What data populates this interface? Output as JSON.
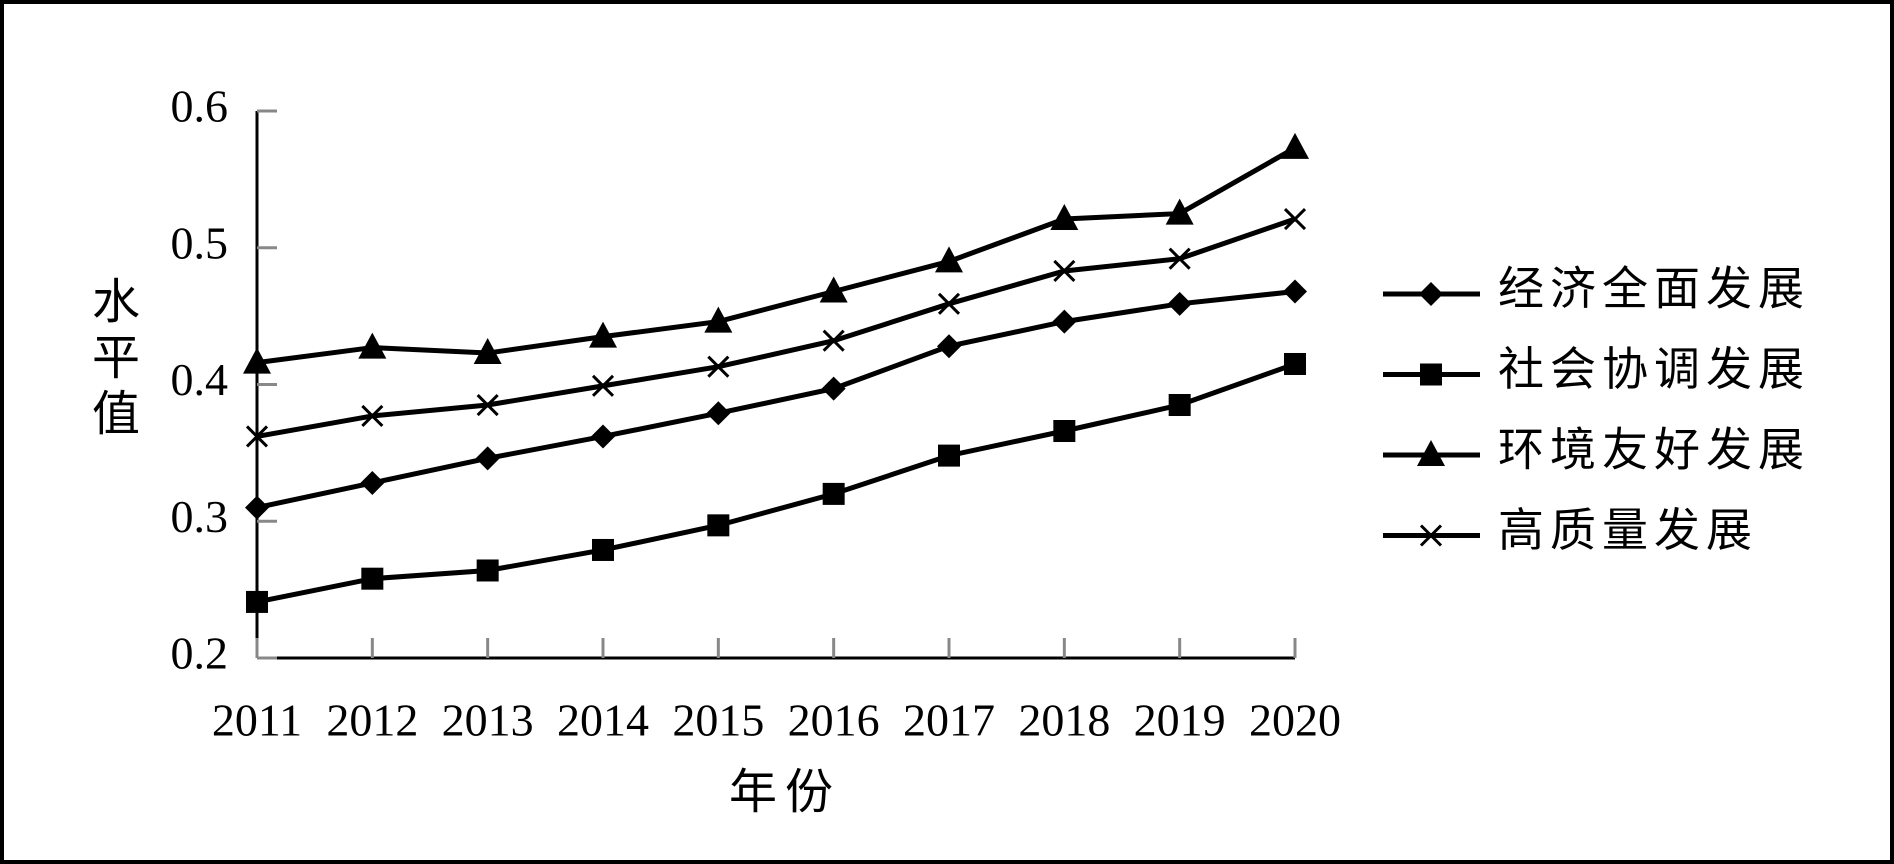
{
  "chart_data": {
    "type": "line",
    "y_label": "水平值",
    "x_label": "年份",
    "categories": [
      "2011",
      "2012",
      "2013",
      "2014",
      "2015",
      "2016",
      "2017",
      "2018",
      "2019",
      "2020"
    ],
    "series": [
      {
        "name": "经济全面发展",
        "color": "#000000",
        "marker": "diamond",
        "values": [
          0.31,
          0.328,
          0.346,
          0.362,
          0.379,
          0.397,
          0.428,
          0.446,
          0.459,
          0.468
        ]
      },
      {
        "name": "社会协调发展",
        "color": "#000000",
        "marker": "square",
        "values": [
          0.241,
          0.258,
          0.264,
          0.279,
          0.297,
          0.32,
          0.348,
          0.366,
          0.385,
          0.415
        ]
      },
      {
        "name": "环境友好发展",
        "color": "#000000",
        "marker": "triangle",
        "values": [
          0.416,
          0.427,
          0.423,
          0.435,
          0.446,
          0.468,
          0.49,
          0.521,
          0.525,
          0.573
        ]
      },
      {
        "name": "高质量发展",
        "color": "#000000",
        "marker": "x",
        "values": [
          0.362,
          0.377,
          0.385,
          0.399,
          0.413,
          0.432,
          0.459,
          0.483,
          0.492,
          0.521
        ]
      }
    ],
    "ylim": [
      0.2,
      0.6
    ],
    "yticks": [
      0.2,
      0.3,
      0.4,
      0.5,
      0.6
    ],
    "grid": false,
    "legend": "right"
  }
}
